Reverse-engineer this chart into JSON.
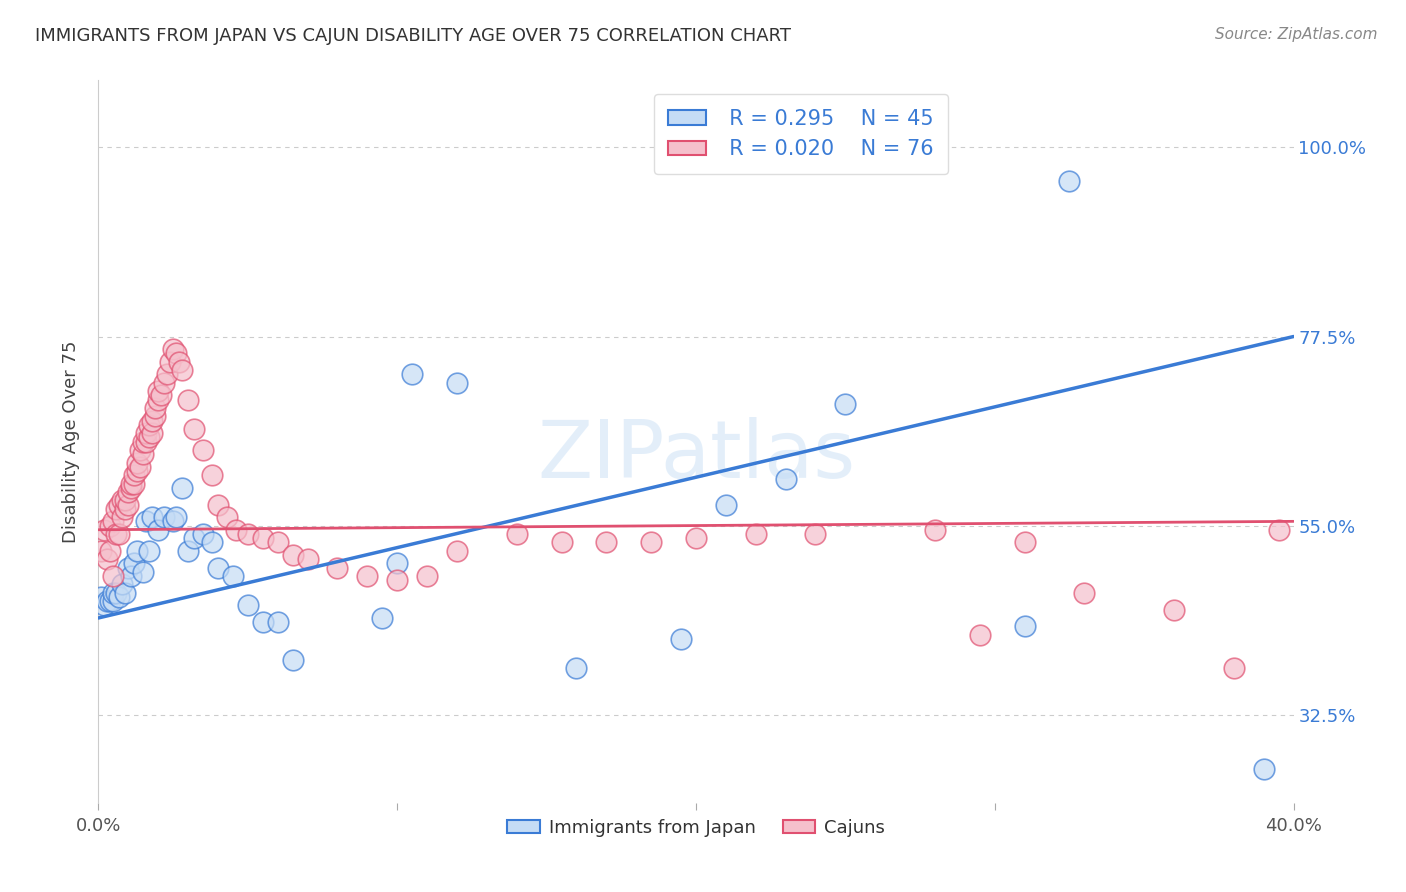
{
  "title": "IMMIGRANTS FROM JAPAN VS CAJUN DISABILITY AGE OVER 75 CORRELATION CHART",
  "source": "Source: ZipAtlas.com",
  "ylabel": "Disability Age Over 75",
  "legend_label1": "Immigrants from Japan",
  "legend_label2": "Cajuns",
  "legend_r1": "R = 0.295",
  "legend_n1": "N = 45",
  "legend_r2": "R = 0.020",
  "legend_n2": "N = 76",
  "color_blue": "#c5dcf5",
  "color_pink": "#f5c0cc",
  "line_color_blue": "#3a7bd5",
  "line_color_pink": "#e05070",
  "watermark": "ZIPatlas",
  "xmin": 0.0,
  "xmax": 0.4,
  "ymin": 0.22,
  "ymax": 1.08,
  "ytick_vals": [
    0.325,
    0.55,
    0.775,
    1.0
  ],
  "ytick_labels": [
    "32.5%",
    "55.0%",
    "77.5%",
    "100.0%"
  ],
  "blue_x": [
    0.001,
    0.002,
    0.003,
    0.004,
    0.005,
    0.005,
    0.006,
    0.007,
    0.008,
    0.009,
    0.01,
    0.011,
    0.012,
    0.013,
    0.015,
    0.016,
    0.017,
    0.018,
    0.02,
    0.022,
    0.025,
    0.026,
    0.028,
    0.03,
    0.032,
    0.035,
    0.038,
    0.04,
    0.045,
    0.05,
    0.055,
    0.06,
    0.065,
    0.095,
    0.1,
    0.105,
    0.12,
    0.16,
    0.195,
    0.21,
    0.23,
    0.25,
    0.31,
    0.325,
    0.39
  ],
  "blue_y": [
    0.465,
    0.455,
    0.46,
    0.46,
    0.46,
    0.47,
    0.47,
    0.465,
    0.48,
    0.47,
    0.5,
    0.49,
    0.505,
    0.52,
    0.495,
    0.555,
    0.52,
    0.56,
    0.545,
    0.56,
    0.555,
    0.56,
    0.595,
    0.52,
    0.535,
    0.54,
    0.53,
    0.5,
    0.49,
    0.455,
    0.435,
    0.435,
    0.39,
    0.44,
    0.505,
    0.73,
    0.72,
    0.38,
    0.415,
    0.575,
    0.605,
    0.695,
    0.43,
    0.96,
    0.26
  ],
  "pink_x": [
    0.001,
    0.002,
    0.003,
    0.004,
    0.004,
    0.005,
    0.005,
    0.006,
    0.006,
    0.007,
    0.007,
    0.008,
    0.008,
    0.009,
    0.009,
    0.01,
    0.01,
    0.011,
    0.011,
    0.012,
    0.012,
    0.013,
    0.013,
    0.014,
    0.014,
    0.015,
    0.015,
    0.016,
    0.016,
    0.017,
    0.017,
    0.018,
    0.018,
    0.019,
    0.019,
    0.02,
    0.02,
    0.021,
    0.022,
    0.023,
    0.024,
    0.025,
    0.026,
    0.027,
    0.028,
    0.03,
    0.032,
    0.035,
    0.038,
    0.04,
    0.043,
    0.046,
    0.05,
    0.055,
    0.06,
    0.065,
    0.07,
    0.08,
    0.09,
    0.1,
    0.11,
    0.12,
    0.14,
    0.155,
    0.17,
    0.185,
    0.2,
    0.22,
    0.24,
    0.28,
    0.295,
    0.31,
    0.33,
    0.36,
    0.38,
    0.395
  ],
  "pink_y": [
    0.52,
    0.545,
    0.51,
    0.52,
    0.55,
    0.49,
    0.555,
    0.54,
    0.57,
    0.54,
    0.575,
    0.56,
    0.58,
    0.57,
    0.58,
    0.575,
    0.59,
    0.595,
    0.6,
    0.6,
    0.61,
    0.615,
    0.625,
    0.62,
    0.64,
    0.635,
    0.65,
    0.65,
    0.66,
    0.655,
    0.67,
    0.66,
    0.675,
    0.68,
    0.69,
    0.7,
    0.71,
    0.705,
    0.72,
    0.73,
    0.745,
    0.76,
    0.755,
    0.745,
    0.735,
    0.7,
    0.665,
    0.64,
    0.61,
    0.575,
    0.56,
    0.545,
    0.54,
    0.535,
    0.53,
    0.515,
    0.51,
    0.5,
    0.49,
    0.485,
    0.49,
    0.52,
    0.54,
    0.53,
    0.53,
    0.53,
    0.535,
    0.54,
    0.54,
    0.545,
    0.42,
    0.53,
    0.47,
    0.45,
    0.38,
    0.545
  ],
  "blue_line_x0": 0.0,
  "blue_line_y0": 0.44,
  "blue_line_x1": 0.4,
  "blue_line_y1": 0.775,
  "pink_line_x0": 0.0,
  "pink_line_y0": 0.545,
  "pink_line_x1": 0.4,
  "pink_line_y1": 0.555
}
